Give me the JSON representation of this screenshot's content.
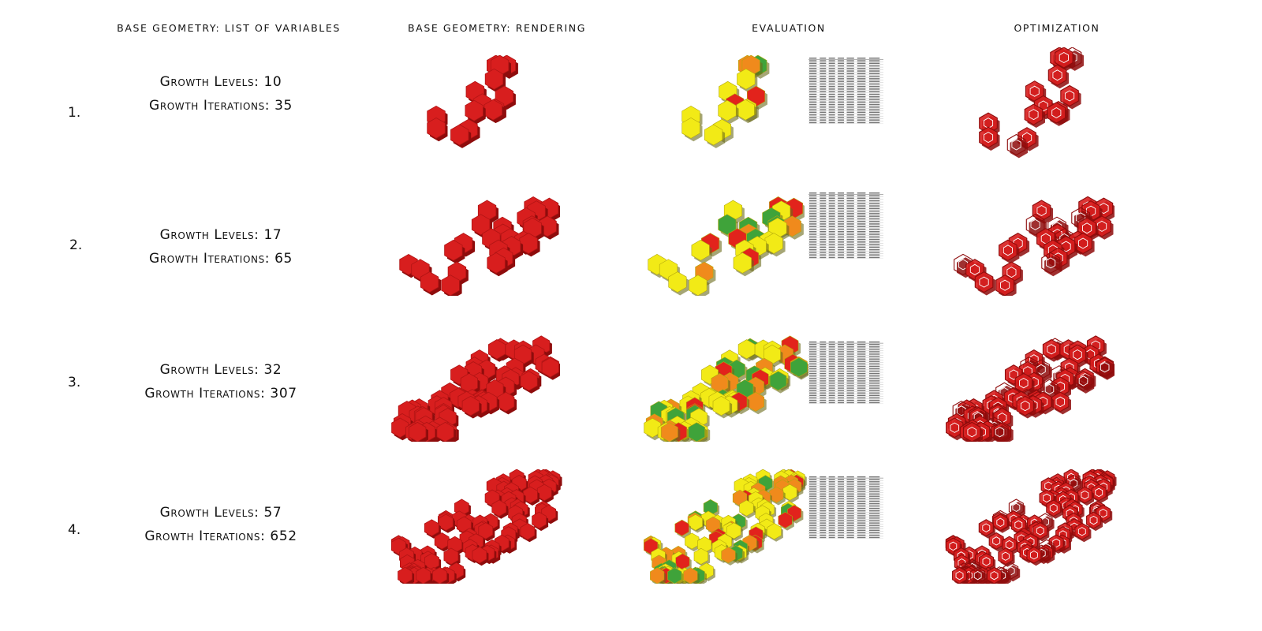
{
  "headers": {
    "variables": "BASE GEOMETRY: LIST OF VARIABLES",
    "rendering": "BASE GEOMETRY: RENDERING",
    "evaluation": "EVALUATION",
    "optimization": "OPTIMIZATION"
  },
  "rows": [
    {
      "index": "1.",
      "levels": "Growth Levels: 10",
      "iterations": "Growth Iterations: 35"
    },
    {
      "index": "2.",
      "levels": "Growth Levels: 17",
      "iterations": "Growth Iterations: 65"
    },
    {
      "index": "3.",
      "levels": "Growth Levels: 32",
      "iterations": "Growth Iterations: 307"
    },
    {
      "index": "4.",
      "levels": "Growth Levels: 57",
      "iterations": "Growth Iterations: 652"
    }
  ],
  "colors": {
    "render_red": "#d81e1e",
    "render_dark": "#8e0c0c",
    "eval_green": "#3fa33a",
    "eval_yellow": "#f2ea16",
    "eval_red": "#e2231c",
    "eval_orange": "#f08a1c"
  }
}
